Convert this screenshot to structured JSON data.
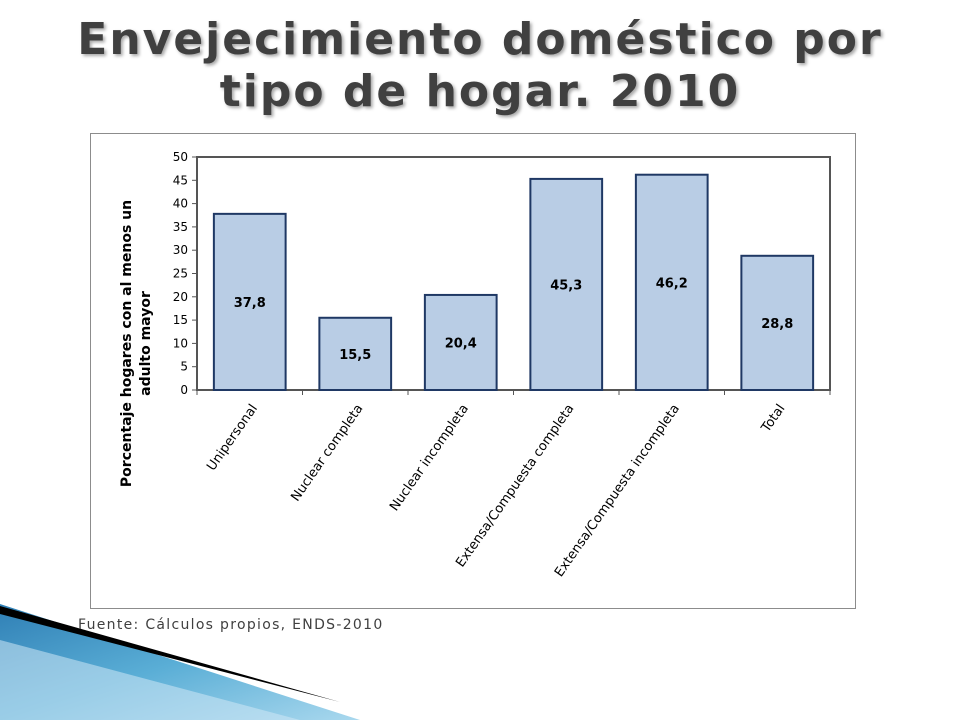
{
  "slide": {
    "title": "Envejecimiento doméstico por tipo de hogar. 2010",
    "source": "Fuente: Cálculos propios, ENDS-2010"
  },
  "colors": {
    "bar_fill": "#b9cde5",
    "bar_stroke": "#1f3864",
    "axis": "#555555",
    "text": "#000000"
  },
  "chart_data": {
    "type": "bar",
    "title": "",
    "xlabel": "",
    "ylabel": "Porcentaje hogares con al menos un adulto mayor",
    "ylabel_lines": [
      "Porcentaje hogares con al menos un",
      "adulto mayor"
    ],
    "categories": [
      "Unipersonal",
      "Nuclear completa",
      "Nuclear incompleta",
      "Extensa/Compuesta completa",
      "Extensa/Compuesta incompleta",
      "Total"
    ],
    "values": [
      37.8,
      15.5,
      20.4,
      45.3,
      46.2,
      28.8
    ],
    "data_labels": [
      "37,8",
      "15,5",
      "20,4",
      "45,3",
      "46,2",
      "28,8"
    ],
    "ylim": [
      0,
      50
    ],
    "yticks": [
      0,
      5,
      10,
      15,
      20,
      25,
      30,
      35,
      40,
      45,
      50
    ],
    "grid": false,
    "legend": "none"
  }
}
